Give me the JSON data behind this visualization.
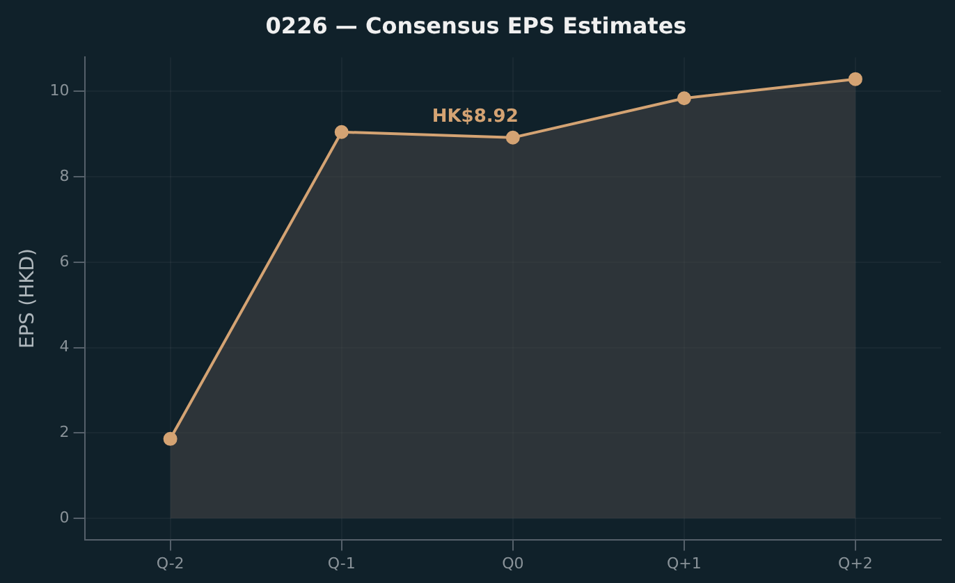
{
  "chart_data": {
    "type": "area",
    "title": "0226 — Consensus EPS Estimates",
    "ylabel": "EPS (HKD)",
    "categories": [
      "Q-2",
      "Q-1",
      "Q0",
      "Q+1",
      "Q+2"
    ],
    "series": [
      {
        "color": "#d4a373",
        "values": [
          1.86,
          9.05,
          8.92,
          9.84,
          10.29
        ]
      }
    ],
    "ylim": [
      -0.5,
      10.8
    ],
    "yticks": [
      0,
      2,
      4,
      6,
      8,
      10
    ],
    "grid": true,
    "marker": "circle",
    "annotations": [
      {
        "text": "HK$8.92",
        "x": "Q0",
        "y": 8.92
      }
    ]
  }
}
